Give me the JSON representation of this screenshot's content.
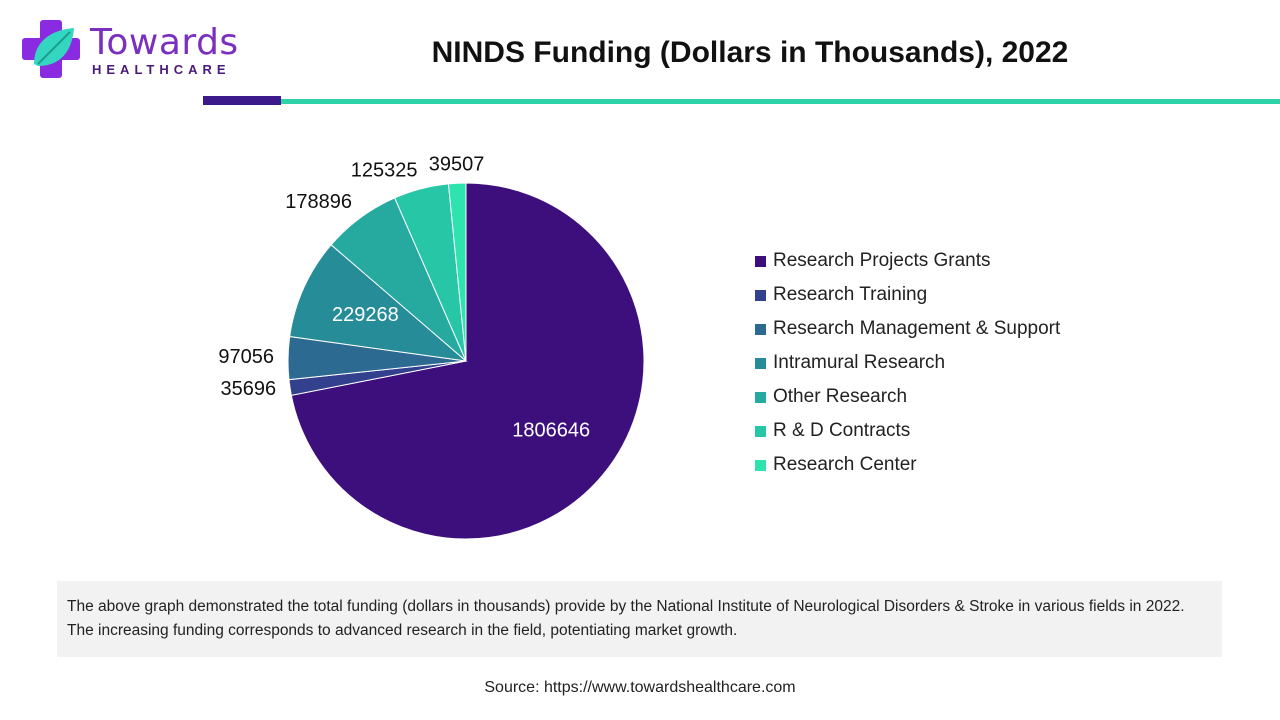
{
  "logo": {
    "name": "Towards",
    "sub": "HEALTHCARE"
  },
  "colors": {
    "brand_purple": "#7b2fbf",
    "title_bar_dark": "#3d1a8c",
    "title_bar_teal": "#2fd1a8"
  },
  "page_title": "NINDS Funding (Dollars in Thousands), 2022",
  "chart_data": {
    "type": "pie",
    "title": "NINDS Funding (Dollars in Thousands), 2022",
    "legend_position": "right",
    "slices": [
      {
        "label": "Research Projects Grants",
        "value": 1806646,
        "color": "#3d0f7d",
        "label_color": "#ffffff",
        "label_inside": true
      },
      {
        "label": "Research Training",
        "value": 35696,
        "color": "#33408e",
        "label_color": "#111111",
        "label_inside": false
      },
      {
        "label": "Research Management & Support",
        "value": 97056,
        "color": "#2c6a92",
        "label_color": "#111111",
        "label_inside": false
      },
      {
        "label": "Intramural Research",
        "value": 229268,
        "color": "#268c98",
        "label_color": "#ffffff",
        "label_inside": true
      },
      {
        "label": "Other Research",
        "value": 178896,
        "color": "#26aaa0",
        "label_color": "#111111",
        "label_inside": false
      },
      {
        "label": "R & D Contracts",
        "value": 125325,
        "color": "#26c6a6",
        "label_color": "#111111",
        "label_inside": false
      },
      {
        "label": "Research Center",
        "value": 39507,
        "color": "#2ee3ad",
        "label_color": "#111111",
        "label_inside": false
      }
    ]
  },
  "description": "The above graph demonstrated the total funding (dollars in thousands) provide by the National Institute of Neurological Disorders & Stroke in various fields in 2022. The increasing funding corresponds to advanced research in the field, potentiating market growth.",
  "source": "Source: https://www.towardshealthcare.com"
}
